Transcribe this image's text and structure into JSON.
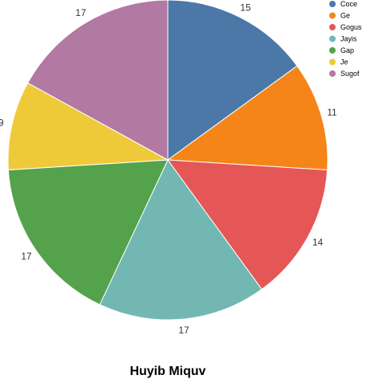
{
  "chart_data": {
    "type": "pie",
    "title": "Huyib Miquv",
    "categories": [
      "Coce",
      "Ge",
      "Gogus",
      "Jayis",
      "Gap",
      "Je",
      "Sugof"
    ],
    "values": [
      15,
      11,
      14,
      17,
      17,
      9,
      17
    ],
    "colors": [
      "#4c78a8",
      "#f58518",
      "#e45756",
      "#72b7b2",
      "#54a24b",
      "#eeca3b",
      "#b279a2"
    ],
    "legend_position": "top-right",
    "start_angle": "12 o'clock",
    "direction": "clockwise"
  }
}
